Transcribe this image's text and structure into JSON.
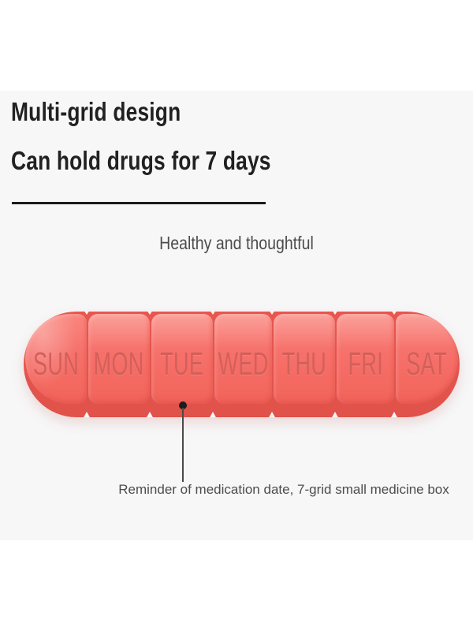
{
  "theme": {
    "backdrop": "#f7f7f8",
    "coral": "#f6706a",
    "coral_light": "#fa867e",
    "coral_dark": "#e8564e",
    "label_red": "#d2605a",
    "text_dark": "#212121",
    "text_gray": "#4c4c4c",
    "line_black": "#1a1a1a"
  },
  "heading": {
    "line1": "Multi-grid design",
    "line2": "Can hold drugs for 7 days"
  },
  "tagline": "Healthy and thoughtful",
  "pillbox": {
    "days": [
      "SUN",
      "MON",
      "TUE",
      "WED",
      "THU",
      "FRI",
      "SAT"
    ],
    "compartment_count": 7
  },
  "annotation": {
    "text": "Reminder of medication date, 7-grid small medicine box"
  }
}
